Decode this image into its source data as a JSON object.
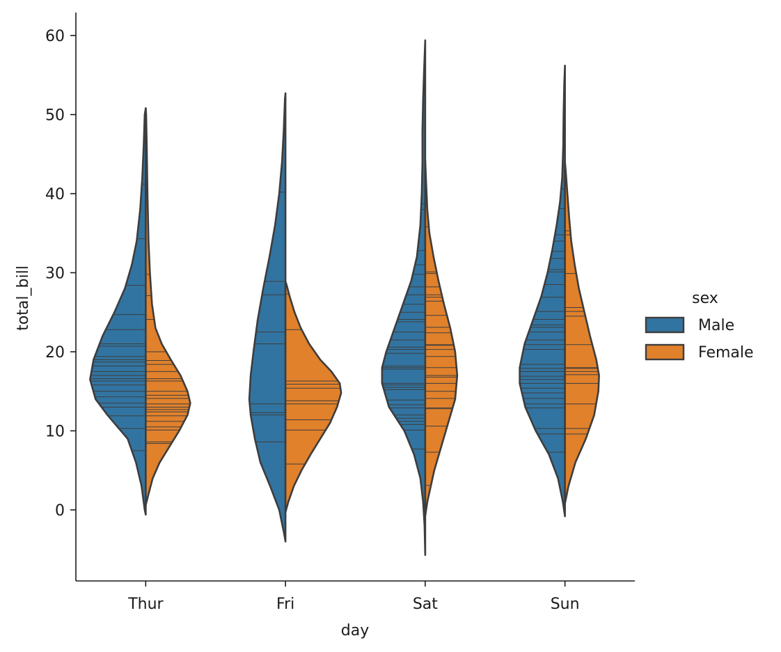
{
  "chart_data": {
    "type": "violin",
    "split": true,
    "inner": "stick",
    "xlabel": "day",
    "ylabel": "total_bill",
    "categories": [
      "Thur",
      "Fri",
      "Sat",
      "Sun"
    ],
    "ylim": [
      -9,
      63
    ],
    "yticks": [
      0,
      10,
      20,
      30,
      40,
      50,
      60
    ],
    "legend": {
      "title": "sex",
      "placement": "right",
      "entries": [
        {
          "label": "Male",
          "color": "#3274a1"
        },
        {
          "label": "Female",
          "color": "#e1812c"
        }
      ]
    },
    "series": [
      {
        "name": "Male",
        "color": "#3274a1",
        "side": "left",
        "violins": [
          {
            "category": "Thur",
            "range": [
              -0.6,
              50.8
            ],
            "profile": [
              [
                -0.6,
                0.0
              ],
              [
                0,
                0.015
              ],
              [
                3,
                0.06
              ],
              [
                6,
                0.14
              ],
              [
                9,
                0.26
              ],
              [
                12,
                0.55
              ],
              [
                14,
                0.72
              ],
              [
                16.5,
                0.8
              ],
              [
                19,
                0.75
              ],
              [
                22,
                0.62
              ],
              [
                25,
                0.45
              ],
              [
                28,
                0.3
              ],
              [
                31,
                0.2
              ],
              [
                34,
                0.13
              ],
              [
                38,
                0.08
              ],
              [
                42,
                0.05
              ],
              [
                46,
                0.03
              ],
              [
                50,
                0.015
              ],
              [
                50.8,
                0.0
              ]
            ],
            "sticks": [
              7.5,
              10.3,
              11.9,
              13.0,
              13.5,
              14.3,
              15.0,
              15.8,
              16.3,
              16.6,
              17.0,
              17.5,
              18.2,
              18.7,
              19.0,
              19.4,
              20.7,
              21.0,
              22.8,
              24.7,
              28.4,
              34.3,
              41.2,
              48.3
            ]
          },
          {
            "category": "Fri",
            "range": [
              -4.0,
              52.7
            ],
            "profile": [
              [
                -4,
                0.0
              ],
              [
                -3,
                0.02
              ],
              [
                0,
                0.09
              ],
              [
                3,
                0.22
              ],
              [
                6,
                0.36
              ],
              [
                9,
                0.44
              ],
              [
                12,
                0.5
              ],
              [
                14,
                0.52
              ],
              [
                17,
                0.5
              ],
              [
                20,
                0.46
              ],
              [
                24,
                0.4
              ],
              [
                28,
                0.32
              ],
              [
                32,
                0.23
              ],
              [
                36,
                0.15
              ],
              [
                40,
                0.09
              ],
              [
                44,
                0.05
              ],
              [
                48,
                0.025
              ],
              [
                52,
                0.008
              ],
              [
                52.7,
                0.0
              ]
            ],
            "sticks": [
              8.6,
              12.0,
              12.3,
              13.4,
              21.0,
              22.5,
              27.2,
              28.9,
              40.2
            ]
          },
          {
            "category": "Sat",
            "range": [
              -5.7,
              59.4
            ],
            "profile": [
              [
                -5.7,
                0.0
              ],
              [
                -2,
                0.01
              ],
              [
                1,
                0.03
              ],
              [
                4,
                0.07
              ],
              [
                7,
                0.16
              ],
              [
                10,
                0.3
              ],
              [
                13,
                0.52
              ],
              [
                16,
                0.62
              ],
              [
                18,
                0.62
              ],
              [
                20,
                0.56
              ],
              [
                23,
                0.44
              ],
              [
                26,
                0.32
              ],
              [
                29,
                0.2
              ],
              [
                32,
                0.12
              ],
              [
                36,
                0.07
              ],
              [
                40,
                0.05
              ],
              [
                44,
                0.04
              ],
              [
                48,
                0.04
              ],
              [
                52,
                0.03
              ],
              [
                56,
                0.015
              ],
              [
                59.4,
                0.0
              ]
            ],
            "sticks": [
              7.7,
              10.1,
              10.8,
              11.2,
              11.6,
              12.0,
              12.9,
              13.3,
              13.9,
              15.2,
              15.5,
              15.8,
              16.0,
              17.8,
              18.0,
              18.2,
              19.8,
              20.3,
              20.6,
              21.5,
              22.5,
              23.8,
              24.1,
              25.0,
              26.0,
              27.2,
              28.2,
              29.8,
              31.0,
              32.8,
              38.0,
              38.7,
              48.3,
              50.8,
              53.0
            ]
          },
          {
            "category": "Sun",
            "range": [
              -0.8,
              56.2
            ],
            "profile": [
              [
                -0.8,
                0.0
              ],
              [
                1,
                0.03
              ],
              [
                4,
                0.1
              ],
              [
                7,
                0.23
              ],
              [
                10,
                0.42
              ],
              [
                13,
                0.57
              ],
              [
                16,
                0.65
              ],
              [
                18,
                0.65
              ],
              [
                21,
                0.58
              ],
              [
                24,
                0.46
              ],
              [
                27,
                0.34
              ],
              [
                30,
                0.25
              ],
              [
                33,
                0.18
              ],
              [
                36,
                0.12
              ],
              [
                39,
                0.07
              ],
              [
                42,
                0.04
              ],
              [
                46,
                0.025
              ],
              [
                50,
                0.02
              ],
              [
                54,
                0.01
              ],
              [
                56.2,
                0.0
              ]
            ],
            "sticks": [
              7.3,
              9.6,
              10.3,
              12.9,
              13.4,
              14.1,
              14.8,
              15.4,
              16.0,
              16.5,
              16.9,
              17.5,
              17.9,
              18.4,
              20.3,
              20.9,
              21.5,
              22.5,
              23.1,
              23.4,
              24.1,
              25.1,
              26.9,
              28.5,
              30.1,
              30.4,
              31.8,
              32.7,
              34.0,
              34.8,
              38.1,
              40.6,
              45.3,
              48.2
            ]
          }
        ]
      },
      {
        "name": "Female",
        "color": "#e1812c",
        "side": "right",
        "violins": [
          {
            "category": "Thur",
            "range": [
              0.6,
              50.8
            ],
            "profile": [
              [
                0.6,
                0.0
              ],
              [
                2,
                0.04
              ],
              [
                4,
                0.1
              ],
              [
                6,
                0.2
              ],
              [
                8,
                0.34
              ],
              [
                10,
                0.48
              ],
              [
                12,
                0.6
              ],
              [
                13.5,
                0.64
              ],
              [
                15,
                0.6
              ],
              [
                17,
                0.5
              ],
              [
                19,
                0.36
              ],
              [
                21,
                0.23
              ],
              [
                23,
                0.14
              ],
              [
                26,
                0.09
              ],
              [
                30,
                0.06
              ],
              [
                34,
                0.04
              ],
              [
                40,
                0.025
              ],
              [
                46,
                0.015
              ],
              [
                50,
                0.006
              ],
              [
                50.8,
                0.0
              ]
            ],
            "sticks": [
              8.4,
              8.6,
              10.1,
              10.5,
              11.2,
              11.9,
              12.4,
              12.7,
              13.0,
              13.4,
              14.1,
              14.5,
              15.0,
              16.3,
              16.6,
              17.5,
              18.4,
              18.9,
              20.0,
              24.1,
              27.1,
              29.8,
              43.1
            ]
          },
          {
            "category": "Fri",
            "range": [
              -0.3,
              28.9
            ],
            "profile": [
              [
                -0.3,
                0.0
              ],
              [
                1,
                0.04
              ],
              [
                3,
                0.12
              ],
              [
                5,
                0.23
              ],
              [
                7,
                0.36
              ],
              [
                9,
                0.5
              ],
              [
                11,
                0.64
              ],
              [
                13,
                0.74
              ],
              [
                14.8,
                0.8
              ],
              [
                16,
                0.78
              ],
              [
                17.5,
                0.66
              ],
              [
                19,
                0.5
              ],
              [
                21,
                0.34
              ],
              [
                23,
                0.22
              ],
              [
                25,
                0.13
              ],
              [
                27,
                0.06
              ],
              [
                28.5,
                0.015
              ],
              [
                28.9,
                0.0
              ]
            ],
            "sticks": [
              5.8,
              10.1,
              11.4,
              13.4,
              13.8,
              15.4,
              15.9,
              16.3,
              22.8,
              27.3
            ]
          },
          {
            "category": "Sat",
            "range": [
              -0.8,
              44.3
            ],
            "profile": [
              [
                -0.8,
                0.0
              ],
              [
                1,
                0.03
              ],
              [
                3,
                0.08
              ],
              [
                5,
                0.13
              ],
              [
                8,
                0.23
              ],
              [
                11,
                0.33
              ],
              [
                14,
                0.43
              ],
              [
                17,
                0.46
              ],
              [
                20,
                0.43
              ],
              [
                23,
                0.36
              ],
              [
                26,
                0.27
              ],
              [
                29,
                0.19
              ],
              [
                32,
                0.12
              ],
              [
                35,
                0.06
              ],
              [
                38,
                0.03
              ],
              [
                41,
                0.015
              ],
              [
                44.3,
                0.0
              ]
            ],
            "sticks": [
              3.1,
              7.3,
              10.6,
              12.8,
              12.9,
              14.1,
              15.0,
              16.0,
              16.8,
              17.0,
              18.0,
              19.4,
              20.3,
              20.8,
              20.9,
              22.4,
              23.1,
              24.6,
              26.4,
              26.9,
              27.2,
              28.2,
              29.9,
              30.1,
              35.8,
              44.3
            ]
          },
          {
            "category": "Sun",
            "range": [
              0.8,
              44.0
            ],
            "profile": [
              [
                0.8,
                0.0
              ],
              [
                3,
                0.05
              ],
              [
                6,
                0.15
              ],
              [
                9,
                0.3
              ],
              [
                12,
                0.42
              ],
              [
                15,
                0.48
              ],
              [
                17,
                0.49
              ],
              [
                19,
                0.45
              ],
              [
                22,
                0.36
              ],
              [
                25,
                0.28
              ],
              [
                28,
                0.2
              ],
              [
                31,
                0.14
              ],
              [
                34,
                0.09
              ],
              [
                37,
                0.06
              ],
              [
                40,
                0.035
              ],
              [
                43,
                0.01
              ],
              [
                44,
                0.0
              ]
            ],
            "sticks": [
              9.6,
              10.3,
              13.4,
              16.0,
              17.1,
              17.5,
              17.9,
              18.0,
              20.9,
              24.5,
              25.1,
              25.6,
              29.9,
              34.8,
              35.3
            ]
          }
        ]
      }
    ]
  }
}
